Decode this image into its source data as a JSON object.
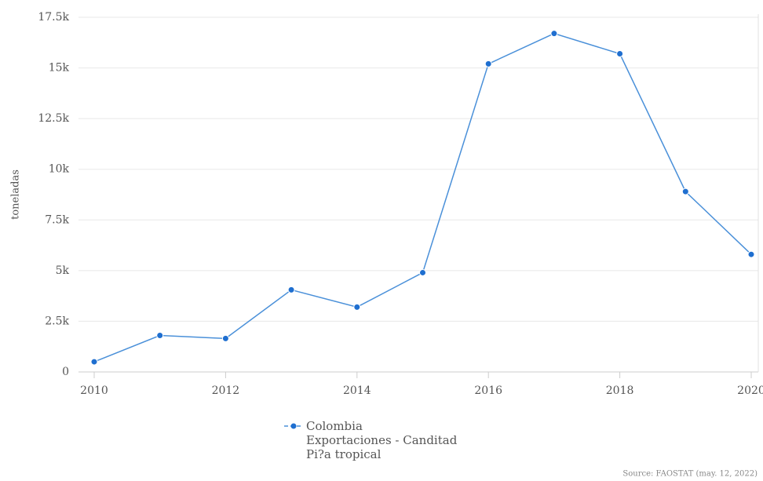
{
  "chart_data": {
    "type": "line",
    "x": [
      2010,
      2011,
      2012,
      2013,
      2014,
      2015,
      2016,
      2017,
      2018,
      2019,
      2020
    ],
    "series": [
      {
        "name": "Colombia\nExportaciones - Canditad\nPi?a tropical",
        "color": "#1f6fd0",
        "values": [
          500,
          1800,
          1650,
          4050,
          3200,
          4900,
          15200,
          16700,
          15700,
          8900,
          5800
        ]
      }
    ],
    "xlim": [
      2010,
      2020
    ],
    "xticks": [
      2010,
      2012,
      2014,
      2016,
      2018,
      2020
    ],
    "ylim": [
      0,
      17500
    ],
    "yticks": [
      0,
      {
        "value": 2500,
        "label": "2.5k"
      },
      {
        "value": 5000,
        "label": "5k"
      },
      {
        "value": 7500,
        "label": "7.5k"
      },
      {
        "value": 10000,
        "label": "10k"
      },
      {
        "value": 12500,
        "label": "12.5k"
      },
      {
        "value": 15000,
        "label": "15k"
      },
      {
        "value": 17500,
        "label": "17.5k"
      }
    ],
    "ylabel": "toneladas",
    "grid": true,
    "legend": "bottom",
    "source": "Source: FAOSTAT (may. 12, 2022)"
  }
}
